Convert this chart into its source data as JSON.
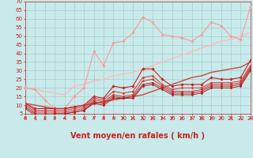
{
  "bg_color": "#c8eaea",
  "grid_color": "#a8cccc",
  "xlabel": "Vent moyen/en rafales ( km/h )",
  "xlim": [
    0,
    23
  ],
  "ylim": [
    5,
    70
  ],
  "yticks": [
    5,
    10,
    15,
    20,
    25,
    30,
    35,
    40,
    45,
    50,
    55,
    60,
    65,
    70
  ],
  "xticks": [
    0,
    1,
    2,
    3,
    4,
    5,
    6,
    7,
    8,
    9,
    10,
    11,
    12,
    13,
    14,
    15,
    16,
    17,
    18,
    19,
    20,
    21,
    22,
    23
  ],
  "x": [
    0,
    1,
    2,
    3,
    4,
    5,
    6,
    7,
    8,
    9,
    10,
    11,
    12,
    13,
    14,
    15,
    16,
    17,
    18,
    19,
    20,
    21,
    22,
    23
  ],
  "series": [
    {
      "y": [
        20,
        19,
        13,
        8,
        8,
        15,
        20,
        41,
        33,
        46,
        47,
        52,
        61,
        58,
        51,
        50,
        49,
        47,
        51,
        58,
        56,
        50,
        48,
        67
      ],
      "color": "#ff9999",
      "marker": "D",
      "markersize": 1.8,
      "linewidth": 0.8,
      "zorder": 3
    },
    {
      "y": [
        11,
        8,
        8,
        8,
        8,
        9,
        10,
        15,
        14,
        21,
        20,
        21,
        31,
        31,
        25,
        21,
        22,
        22,
        22,
        26,
        25,
        25,
        26,
        36
      ],
      "color": "#cc2222",
      "marker": "D",
      "markersize": 1.8,
      "linewidth": 0.8,
      "zorder": 4
    },
    {
      "y": [
        11,
        7,
        7,
        7,
        7,
        8,
        9,
        14,
        13,
        18,
        17,
        18,
        26,
        27,
        22,
        19,
        20,
        20,
        20,
        23,
        23,
        23,
        24,
        33
      ],
      "color": "#dd3333",
      "marker": "D",
      "markersize": 1.5,
      "linewidth": 0.7,
      "zorder": 4
    },
    {
      "y": [
        10,
        6,
        6,
        6,
        6,
        7,
        8,
        13,
        12,
        16,
        15,
        16,
        24,
        25,
        21,
        18,
        18,
        18,
        19,
        22,
        22,
        22,
        23,
        32
      ],
      "color": "#cc3333",
      "marker": "D",
      "markersize": 1.5,
      "linewidth": 0.7,
      "zorder": 4
    },
    {
      "y": [
        9,
        5,
        5,
        5,
        5,
        6,
        7,
        12,
        11,
        15,
        14,
        15,
        22,
        23,
        20,
        17,
        17,
        17,
        18,
        21,
        21,
        21,
        22,
        31
      ],
      "color": "#bb2222",
      "marker": "D",
      "markersize": 1.5,
      "linewidth": 0.7,
      "zorder": 4
    },
    {
      "y": [
        8,
        4,
        4,
        5,
        5,
        6,
        7,
        11,
        10,
        14,
        14,
        14,
        21,
        22,
        19,
        16,
        16,
        16,
        17,
        20,
        20,
        20,
        21,
        30
      ],
      "color": "#aa2020",
      "marker": "D",
      "markersize": 1.5,
      "linewidth": 0.7,
      "zorder": 4
    },
    {
      "y": [
        20,
        19,
        18,
        17,
        16,
        21,
        22,
        24,
        25,
        27,
        28,
        29,
        31,
        33,
        35,
        37,
        39,
        41,
        43,
        45,
        47,
        48,
        50,
        52
      ],
      "color": "#ffbbbb",
      "marker": null,
      "markersize": 0,
      "linewidth": 1.0,
      "zorder": 2
    },
    {
      "y": [
        11,
        10,
        9,
        8,
        8,
        9,
        10,
        11,
        12,
        13,
        14,
        15,
        16,
        18,
        20,
        22,
        24,
        26,
        27,
        29,
        30,
        31,
        32,
        35
      ],
      "color": "#cc4444",
      "marker": null,
      "markersize": 0,
      "linewidth": 1.0,
      "zorder": 2
    }
  ],
  "arrow_color": "#cc2222",
  "xlabel_color": "#cc2222",
  "xlabel_fontsize": 7,
  "tick_fontsize": 5.0,
  "tick_color": "#cc2222"
}
